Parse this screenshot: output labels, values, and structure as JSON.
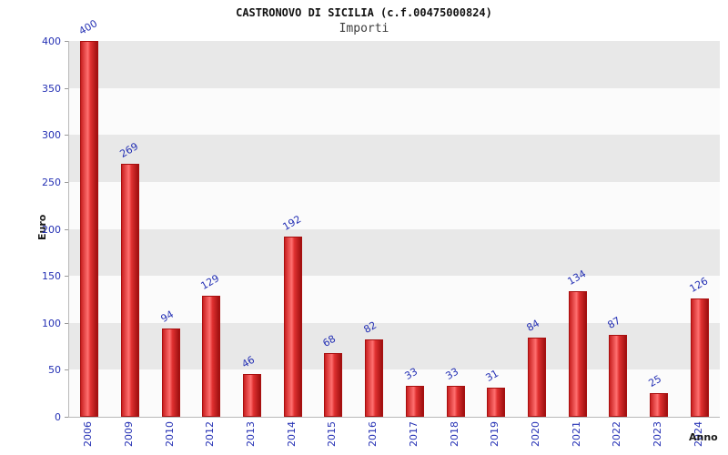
{
  "header": {
    "title": "CASTRONOVO DI SICILIA (c.f.00475000824)",
    "subtitle": "Importi"
  },
  "chart_data": {
    "type": "bar",
    "title": "CASTRONOVO DI SICILIA (c.f.00475000824)",
    "subtitle": "Importi",
    "categories": [
      "2006",
      "2009",
      "2010",
      "2012",
      "2013",
      "2014",
      "2015",
      "2016",
      "2017",
      "2018",
      "2019",
      "2020",
      "2021",
      "2022",
      "2023",
      "2024"
    ],
    "values": [
      400,
      269,
      94,
      129,
      46,
      192,
      68,
      82,
      33,
      33,
      31,
      84,
      134,
      87,
      25,
      126
    ],
    "xlabel": "Anno",
    "ylabel": "Euro",
    "ylim": [
      0,
      400
    ],
    "ytick_step": 50,
    "yticks": [
      0,
      50,
      100,
      150,
      200,
      250,
      300,
      350,
      400
    ],
    "grid": "alternating-horizontal-bands",
    "legend": "none",
    "colors": {
      "bar_light": "#ff7070",
      "bar_main": "#e03030",
      "bar_dark": "#9e1010",
      "bar_border": "#a80f0f",
      "value_label": "#2430b4",
      "tick_label": "#2430b4",
      "band_gray": "#e8e8e8",
      "band_white": "#fbfbfb",
      "title": "#111111",
      "subtitle": "#3d3d3d"
    }
  }
}
